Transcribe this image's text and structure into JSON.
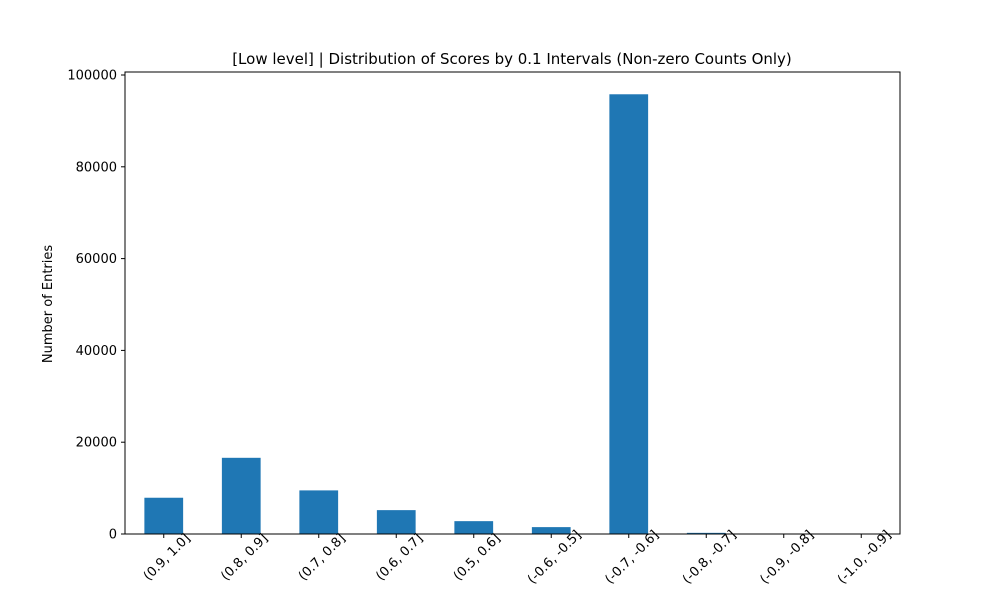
{
  "chart_data": {
    "type": "bar",
    "title": "[Low level] | Distribution of Scores by 0.1 Intervals (Non-zero Counts Only)",
    "xlabel": "",
    "ylabel": "Number of Entries",
    "categories": [
      "(0.9, 1.0]",
      "(0.8, 0.9]",
      "(0.7, 0.8]",
      "(0.6, 0.7]",
      "(0.5, 0.6]",
      "(-0.6, -0.5]",
      "(-0.7, -0.6]",
      "(-0.8, -0.7]",
      "(-0.9, -0.8]",
      "(-1.0, -0.9]"
    ],
    "values": [
      7900,
      16600,
      9500,
      5200,
      2800,
      1500,
      95800,
      250,
      60,
      30
    ],
    "ylim": [
      0,
      100000
    ],
    "yticks": [
      0,
      20000,
      40000,
      60000,
      80000,
      100000
    ],
    "ytick_labels": [
      "0",
      "20000",
      "40000",
      "60000",
      "80000",
      "100000"
    ],
    "bar_color": "#1f77b4",
    "grid": false,
    "legend": "none"
  }
}
